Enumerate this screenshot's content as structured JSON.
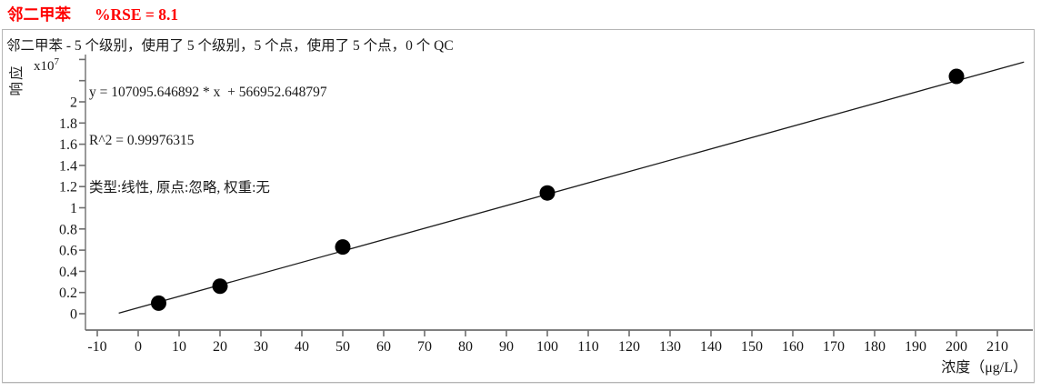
{
  "header": {
    "compound": "邻二甲苯",
    "rse_label": "%RSE = 8.1",
    "title_color": "#ff0000"
  },
  "chart_data": {
    "type": "scatter",
    "subtitle": "邻二甲苯 - 5 个级别，使用了 5 个级别，5 个点，使用了 5 个点，0 个 QC",
    "equation": "y = 107095.646892 * x  + 566952.648797",
    "r_squared": "R^2 = 0.99976315",
    "fit_info": "类型:线性, 原点:忽略, 权重:无",
    "ylabel": "响应",
    "y_scale_label": "x10",
    "y_scale_exponent": "7",
    "xlabel": "浓度（μg/L）",
    "x_ticks": [
      -10,
      0,
      10,
      20,
      30,
      40,
      50,
      60,
      70,
      80,
      90,
      100,
      110,
      120,
      130,
      140,
      150,
      160,
      170,
      180,
      190,
      200,
      210
    ],
    "y_ticks": [
      0,
      0.2,
      0.4,
      0.6,
      0.8,
      1,
      1.2,
      1.4,
      1.6,
      1.8,
      2
    ],
    "y_unlabeled_ticks": [
      2.2,
      2.4
    ],
    "xlim": [
      -14,
      219
    ],
    "ylim": [
      -0.15,
      2.44
    ],
    "unit_exponent": 7,
    "points": {
      "x": [
        5,
        20,
        50,
        100,
        200
      ],
      "y": [
        0.1,
        0.26,
        0.63,
        1.14,
        2.24
      ]
    },
    "fit": {
      "slope": 107095.646892,
      "intercept": 566952.648797,
      "x_start": -4.75,
      "x_end": 216.5
    },
    "grid": false,
    "legend": "none",
    "point_color": "#000000",
    "line_color": "#1a1a1a",
    "axis_color": "#6e6e6e"
  }
}
